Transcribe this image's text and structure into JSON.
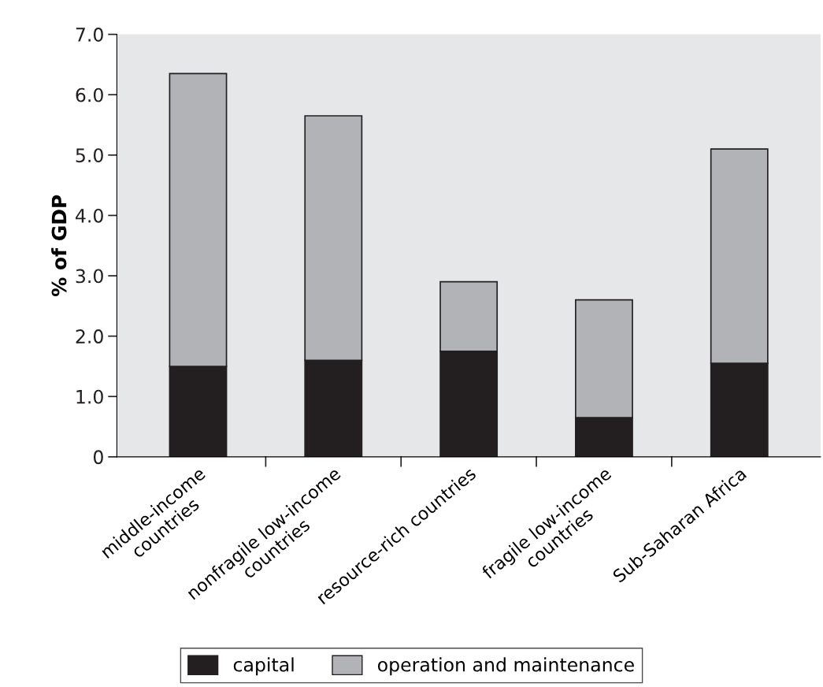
{
  "chart_data": {
    "type": "bar",
    "stacked": true,
    "ylabel": "% of GDP",
    "categories": [
      "middle-income\ncountries",
      "nonfragile low-income\ncountries",
      "resource-rich countries",
      "fragile low-income\ncountries",
      "Sub-Saharan Africa"
    ],
    "series": [
      {
        "name": "capital",
        "color": "#231f20",
        "values": [
          1.5,
          1.6,
          1.75,
          0.65,
          1.55
        ]
      },
      {
        "name": "operation and maintenance",
        "color": "#b1b3b6",
        "values": [
          4.85,
          4.05,
          1.15,
          1.95,
          3.55
        ]
      }
    ],
    "ylim": [
      0,
      7.0
    ],
    "yticks": [
      0,
      {
        "value": 1.0,
        "label": "1.0"
      },
      {
        "value": 2.0,
        "label": "2.0"
      },
      {
        "value": 3.0,
        "label": "3.0"
      },
      {
        "value": 4.0,
        "label": "4.0"
      },
      {
        "value": 5.0,
        "label": "5.0"
      },
      {
        "value": 6.0,
        "label": "6.0"
      },
      {
        "value": 7.0,
        "label": "7.0"
      }
    ],
    "grid": false,
    "legend": "bottom"
  }
}
